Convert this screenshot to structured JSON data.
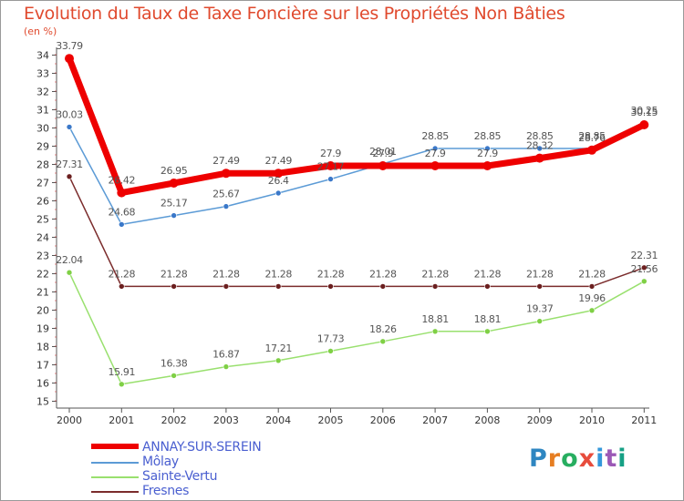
{
  "title": "Evolution du Taux de Taxe Foncière sur les Propriétés Non Bâties",
  "unit_label": "(en %)",
  "logo": {
    "letters": [
      "P",
      "r",
      "o",
      "x",
      "i",
      "t",
      "i"
    ],
    "colors": [
      "#2e86c1",
      "#e67e22",
      "#27ae60",
      "#e74c3c",
      "#3498db",
      "#9b59b6",
      "#16a085"
    ]
  },
  "chart_data": {
    "type": "line",
    "title": "Evolution du Taux de Taxe Foncière sur les Propriétés Non Bâties",
    "ylabel": "(en %)",
    "xlabel": "",
    "ylim": [
      15,
      34
    ],
    "y_ticks": [
      "15",
      "16",
      "17",
      "18",
      "19",
      "20",
      "21",
      "22",
      "23",
      "24",
      "25",
      "26",
      "27",
      "28",
      "29",
      "30",
      "31",
      "32",
      "33",
      "34"
    ],
    "categories": [
      "2000",
      "2001",
      "2002",
      "2003",
      "2004",
      "2005",
      "2006",
      "2007",
      "2008",
      "2009",
      "2010",
      "2011"
    ],
    "series": [
      {
        "name": "ANNAY-SUR-SEREIN",
        "color": "#ee0000",
        "values": [
          33.79,
          26.42,
          26.95,
          27.49,
          27.49,
          27.9,
          27.9,
          27.9,
          27.9,
          28.32,
          28.76,
          30.15
        ],
        "labels": [
          "33.79",
          "26.42",
          "26.95",
          "27.49",
          "27.49",
          "27.9",
          "27.9",
          "27.9",
          "27.9",
          "28.32",
          "28.76",
          "30.15"
        ]
      },
      {
        "name": "Môlay",
        "color": "#5c9bd6",
        "values": [
          30.03,
          24.68,
          25.17,
          25.67,
          26.4,
          27.17,
          28.01,
          28.85,
          28.85,
          28.85,
          28.85,
          30.25
        ],
        "labels": [
          "30.03",
          "24.68",
          "25.17",
          "25.67",
          "26.4",
          "27.17",
          "28.01",
          "28.85",
          "28.85",
          "28.85",
          "28.85",
          "30.25"
        ]
      },
      {
        "name": "Sainte-Vertu",
        "color": "#99e06e",
        "values": [
          22.04,
          15.91,
          16.38,
          16.87,
          17.21,
          17.73,
          18.26,
          18.81,
          18.81,
          19.37,
          19.96,
          21.56
        ],
        "labels": [
          "22.04",
          "15.91",
          "16.38",
          "16.87",
          "17.21",
          "17.73",
          "18.26",
          "18.81",
          "18.81",
          "19.37",
          "19.96",
          "21.56"
        ]
      },
      {
        "name": "Fresnes",
        "color": "#7b2c2c",
        "values": [
          27.31,
          21.28,
          21.28,
          21.28,
          21.28,
          21.28,
          21.28,
          21.28,
          21.28,
          21.28,
          21.28,
          22.31
        ],
        "labels": [
          "27.31",
          "21.28",
          "21.28",
          "21.28",
          "21.28",
          "21.28",
          "21.28",
          "21.28",
          "21.28",
          "21.28",
          "21.28",
          "22.31"
        ]
      }
    ],
    "grid": false,
    "legend": "bottom-left"
  }
}
